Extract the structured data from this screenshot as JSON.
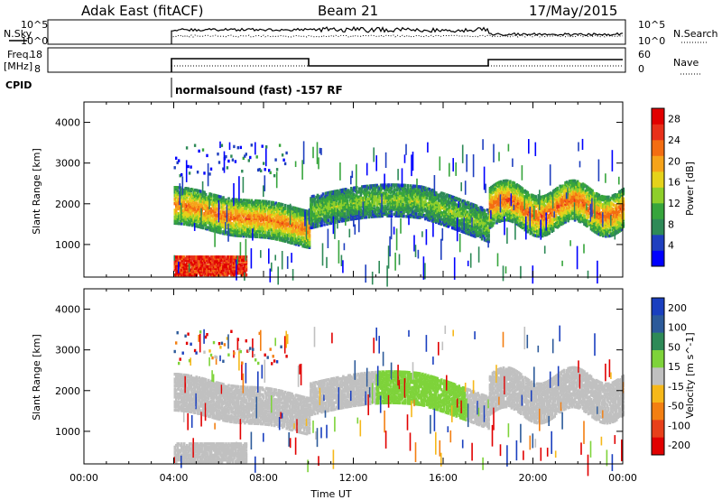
{
  "header": {
    "station": "Adak East (fitACF)",
    "beam": "Beam 21",
    "date": "17/May/2015"
  },
  "strip": {
    "nsky_label": "N.Sky",
    "nsearch_label": "N.Search",
    "freq_label_1": "Freq.",
    "freq_label_2": "[MHz]",
    "nave_label": "Nave",
    "cpid_label": "CPID",
    "cpid_text": "normalsound (fast) -157 RF",
    "noise_ticks_left": [
      "10^5",
      "10^0"
    ],
    "noise_ticks_right": [
      "10^5",
      "10^0"
    ],
    "freq_ticks": [
      "18",
      "8"
    ],
    "nave_ticks": [
      "60",
      "0"
    ]
  },
  "chart_data": [
    {
      "type": "heatmap",
      "panel": "power",
      "ylabel": "Slant Range [km]",
      "xlabel": "",
      "x_range_hours": [
        0,
        24
      ],
      "ylim": [
        200,
        4500
      ],
      "yticks": [
        1000,
        2000,
        3000,
        4000
      ],
      "colorbar": {
        "label": "Power [dB]",
        "ticks": [
          4,
          8,
          12,
          16,
          20,
          24,
          28
        ],
        "range": [
          0,
          30
        ],
        "colors": [
          "#0000ff",
          "#1f3fbf",
          "#2e8a57",
          "#37a53c",
          "#8ecf2a",
          "#e5d21a",
          "#f6a31a",
          "#f36d12",
          "#e8301a",
          "#e10000"
        ]
      },
      "features": [
        {
          "t_start": 4.0,
          "t_end": 10.0,
          "range_start": 1300,
          "range_end": 2200,
          "level_db": 18
        },
        {
          "t_start": 4.0,
          "t_end": 7.0,
          "range_start": 250,
          "range_end": 700,
          "level_db": 28
        },
        {
          "t_start": 10.0,
          "t_end": 18.0,
          "range_start": 1300,
          "range_end": 2300,
          "level_db": 10
        },
        {
          "t_start": 18.0,
          "t_end": 21.0,
          "range_start": 1300,
          "range_end": 2400,
          "level_db": 22
        }
      ]
    },
    {
      "type": "heatmap",
      "panel": "velocity",
      "ylabel": "Slant Range [km]",
      "xlabel": "Time UT",
      "x_range_hours": [
        0,
        24
      ],
      "xticks": [
        "00:00",
        "04:00",
        "08:00",
        "12:00",
        "16:00",
        "20:00",
        "00:00"
      ],
      "ylim": [
        200,
        4500
      ],
      "yticks": [
        1000,
        2000,
        3000,
        4000
      ],
      "colorbar": {
        "label": "Velocity [m s^-1]",
        "ticks": [
          200,
          100,
          50,
          15,
          -15,
          -50,
          -100,
          -200
        ],
        "colors": [
          "#1a3fbf",
          "#2c5a9a",
          "#2e8a57",
          "#7ed33a",
          "#c0c0c0",
          "#f6b81a",
          "#f37f12",
          "#e8401a",
          "#e10000"
        ]
      },
      "features": [
        {
          "t_start": 4.0,
          "t_end": 10.0,
          "range_start": 1300,
          "range_end": 2200,
          "velocity": 0
        },
        {
          "t_start": 4.0,
          "t_end": 7.0,
          "range_start": 250,
          "range_end": 700,
          "velocity": 0
        },
        {
          "t_start": 10.0,
          "t_end": 18.0,
          "range_start": 1300,
          "range_end": 2300,
          "velocity": 0
        },
        {
          "t_start": 13.0,
          "t_end": 17.0,
          "range_start": 1600,
          "range_end": 2200,
          "velocity": 40
        }
      ]
    }
  ]
}
